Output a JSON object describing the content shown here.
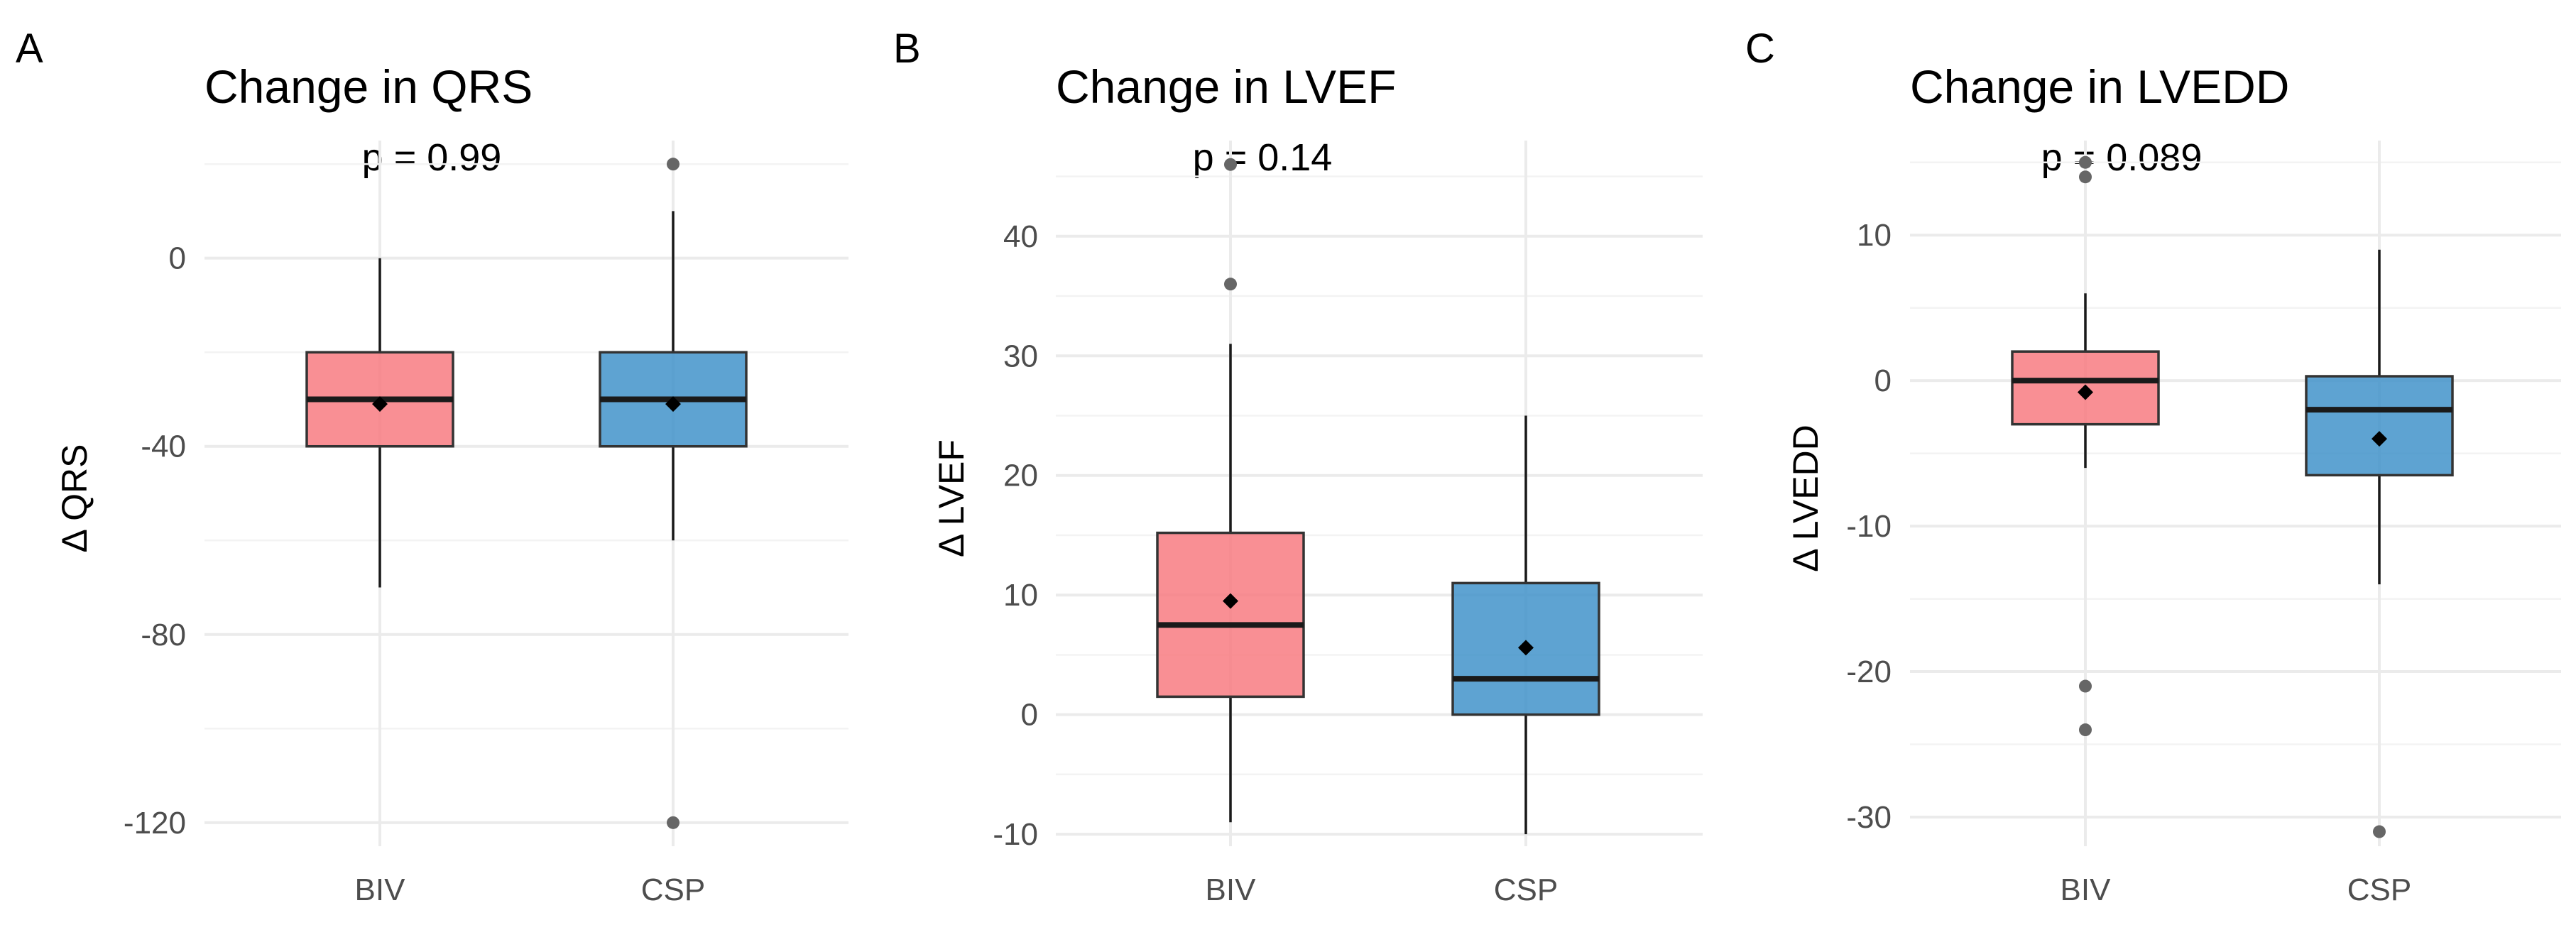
{
  "chart_data": [
    {
      "type": "box",
      "panel": "A",
      "title": "Change in QRS",
      "annotation": "p = 0.99",
      "ylabel": "Δ QRS",
      "xlabel": "",
      "categories": [
        "BIV",
        "CSP"
      ],
      "ylim": [
        -125,
        25
      ],
      "yticks": [
        0,
        -40,
        -80,
        -120
      ],
      "ytick_labels": [
        "0",
        "-40",
        "-80",
        "-120"
      ],
      "minor_ticks": [
        20,
        -20,
        -60,
        -100
      ],
      "boxes": [
        {
          "group": "BIV",
          "whisker_low": -70,
          "q1": -40,
          "median": -30,
          "q3": -20,
          "whisker_high": 0,
          "mean": -31,
          "outliers": [],
          "color": "#F8767D"
        },
        {
          "group": "CSP",
          "whisker_low": -60,
          "q1": -40,
          "median": -30,
          "q3": -20,
          "whisker_high": 10,
          "mean": -31,
          "outliers": [
            20,
            -120
          ],
          "color": "#3A8FC8"
        }
      ]
    },
    {
      "type": "box",
      "panel": "B",
      "title": "Change in LVEF",
      "annotation": "p = 0.14",
      "ylabel": "Δ LVEF",
      "xlabel": "",
      "categories": [
        "BIV",
        "CSP"
      ],
      "ylim": [
        -11,
        48
      ],
      "yticks": [
        40,
        30,
        20,
        10,
        0,
        -10
      ],
      "ytick_labels": [
        "40",
        "30",
        "20",
        "10",
        "0",
        "-10"
      ],
      "minor_ticks": [
        45,
        35,
        25,
        15,
        5,
        -5
      ],
      "boxes": [
        {
          "group": "BIV",
          "whisker_low": -9,
          "q1": 1.5,
          "median": 7.5,
          "q3": 15.2,
          "whisker_high": 31,
          "mean": 9.5,
          "outliers": [
            46,
            36
          ],
          "color": "#F8767D"
        },
        {
          "group": "CSP",
          "whisker_low": -10,
          "q1": 0,
          "median": 3,
          "q3": 11,
          "whisker_high": 25,
          "mean": 5.6,
          "outliers": [],
          "color": "#3A8FC8"
        }
      ]
    },
    {
      "type": "box",
      "panel": "C",
      "title": "Change in LVEDD",
      "annotation": "p = 0.089",
      "ylabel": "Δ LVEDD",
      "xlabel": "",
      "categories": [
        "BIV",
        "CSP"
      ],
      "ylim": [
        -32,
        16.5
      ],
      "yticks": [
        10,
        0,
        -10,
        -20,
        -30
      ],
      "ytick_labels": [
        "10",
        "0",
        "-10",
        "-20",
        "-30"
      ],
      "minor_ticks": [
        15,
        5,
        -5,
        -15,
        -25
      ],
      "boxes": [
        {
          "group": "BIV",
          "whisker_low": -6,
          "q1": -3,
          "median": 0,
          "q3": 2,
          "whisker_high": 6,
          "mean": -0.8,
          "outliers": [
            15,
            14,
            -21,
            -24
          ],
          "color": "#F8767D"
        },
        {
          "group": "CSP",
          "whisker_low": -14,
          "q1": -6.5,
          "median": -2,
          "q3": 0.3,
          "whisker_high": 9,
          "mean": -4,
          "outliers": [
            -31
          ],
          "color": "#3A8FC8"
        }
      ]
    }
  ]
}
